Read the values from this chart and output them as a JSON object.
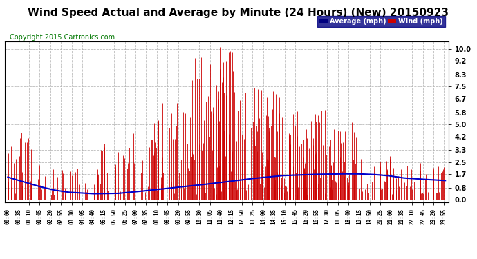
{
  "title": "Wind Speed Actual and Average by Minute (24 Hours) (New) 20150923",
  "copyright": "Copyright 2015 Cartronics.com",
  "yticks": [
    0.0,
    0.8,
    1.7,
    2.5,
    3.3,
    4.2,
    5.0,
    5.8,
    6.7,
    7.5,
    8.3,
    9.2,
    10.0
  ],
  "ylim": [
    -0.15,
    10.5
  ],
  "xlim": [
    -10,
    1449
  ],
  "background_color": "#ffffff",
  "grid_color": "#aaaaaa",
  "wind_color": "#cc0000",
  "avg_color": "#0000cc",
  "legend_avg_bg": "#000080",
  "legend_wind_bg": "#cc0000",
  "title_fontsize": 11,
  "copyright_fontsize": 7,
  "tick_step": 35,
  "avg_profile_knots": [
    [
      0,
      1.5
    ],
    [
      50,
      1.2
    ],
    [
      100,
      0.9
    ],
    [
      150,
      0.65
    ],
    [
      200,
      0.5
    ],
    [
      280,
      0.4
    ],
    [
      360,
      0.42
    ],
    [
      430,
      0.55
    ],
    [
      500,
      0.7
    ],
    [
      570,
      0.85
    ],
    [
      640,
      1.0
    ],
    [
      720,
      1.2
    ],
    [
      800,
      1.4
    ],
    [
      900,
      1.6
    ],
    [
      1000,
      1.68
    ],
    [
      1050,
      1.7
    ],
    [
      1100,
      1.72
    ],
    [
      1150,
      1.72
    ],
    [
      1200,
      1.68
    ],
    [
      1250,
      1.6
    ],
    [
      1300,
      1.45
    ],
    [
      1350,
      1.38
    ],
    [
      1400,
      1.32
    ],
    [
      1439,
      1.28
    ]
  ],
  "wind_segments": [
    {
      "start": 0,
      "end": 80,
      "prob": 0.45,
      "max": 5.2
    },
    {
      "start": 80,
      "end": 300,
      "prob": 0.18,
      "max": 2.5
    },
    {
      "start": 300,
      "end": 480,
      "prob": 0.2,
      "max": 4.5
    },
    {
      "start": 480,
      "end": 600,
      "prob": 0.35,
      "max": 6.5
    },
    {
      "start": 600,
      "end": 750,
      "prob": 0.5,
      "max": 10.2
    },
    {
      "start": 750,
      "end": 900,
      "prob": 0.55,
      "max": 7.5
    },
    {
      "start": 900,
      "end": 1050,
      "prob": 0.45,
      "max": 6.0
    },
    {
      "start": 1050,
      "end": 1150,
      "prob": 0.4,
      "max": 5.5
    },
    {
      "start": 1150,
      "end": 1300,
      "prob": 0.35,
      "max": 3.0
    },
    {
      "start": 1300,
      "end": 1440,
      "prob": 0.3,
      "max": 2.5
    }
  ]
}
